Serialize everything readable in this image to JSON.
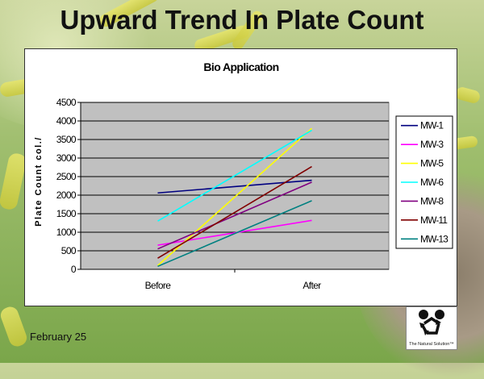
{
  "slide": {
    "title": "Upward Trend In Plate Count",
    "footer_date": "February 25",
    "logo_tagline": "The Natural Solution™"
  },
  "chart_data": {
    "type": "line",
    "title": "Bio Application",
    "xlabel": "",
    "ylabel": "Plate Count col./",
    "categories": [
      "Before",
      "After"
    ],
    "ylim": [
      0,
      4500
    ],
    "yticks": [
      0,
      500,
      1000,
      1500,
      2000,
      2500,
      3000,
      3500,
      4000,
      4500
    ],
    "grid": true,
    "plot_background": "#c0c0c0",
    "legend_position": "right",
    "series": [
      {
        "name": "MW-1",
        "color": "#000080",
        "values": [
          2060,
          2400
        ]
      },
      {
        "name": "MW-3",
        "color": "#ff00ff",
        "values": [
          650,
          1320
        ]
      },
      {
        "name": "MW-5",
        "color": "#ffff00",
        "values": [
          100,
          3800
        ]
      },
      {
        "name": "MW-6",
        "color": "#00ffff",
        "values": [
          1300,
          3750
        ]
      },
      {
        "name": "MW-8",
        "color": "#800080",
        "values": [
          550,
          2350
        ]
      },
      {
        "name": "MW-11",
        "color": "#800000",
        "values": [
          300,
          2770
        ]
      },
      {
        "name": "MW-13",
        "color": "#008080",
        "values": [
          80,
          1850
        ]
      }
    ]
  }
}
